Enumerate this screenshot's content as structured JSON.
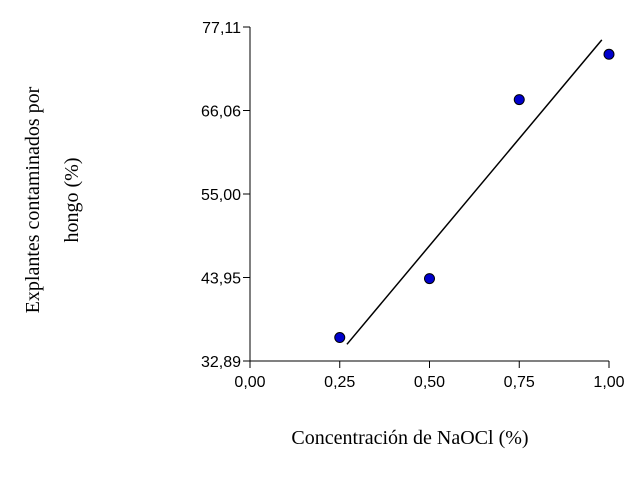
{
  "chart_data": {
    "type": "scatter",
    "xlabel": "Concentración de NaOCl (%)",
    "ylabel_lines": [
      "Explantes contaminados por",
      "hongo (%)"
    ],
    "xlim": [
      0,
      1
    ],
    "ylim": [
      32.89,
      77.11
    ],
    "x_ticks": [
      "0,00",
      "0,25",
      "0,50",
      "0,75",
      "1,00"
    ],
    "y_ticks": [
      "32,89",
      "43,95",
      "55,00",
      "66,06",
      "77,11"
    ],
    "points": [
      {
        "x": 0.25,
        "y": 36.0
      },
      {
        "x": 0.5,
        "y": 43.8
      },
      {
        "x": 0.75,
        "y": 67.5
      },
      {
        "x": 1.0,
        "y": 73.5
      }
    ],
    "trendline": {
      "x": [
        0.27,
        0.98
      ],
      "y": [
        35.1,
        75.4
      ]
    },
    "grid": false,
    "legend": "none",
    "point_color": "#0000cc",
    "line_color": "#000000"
  }
}
